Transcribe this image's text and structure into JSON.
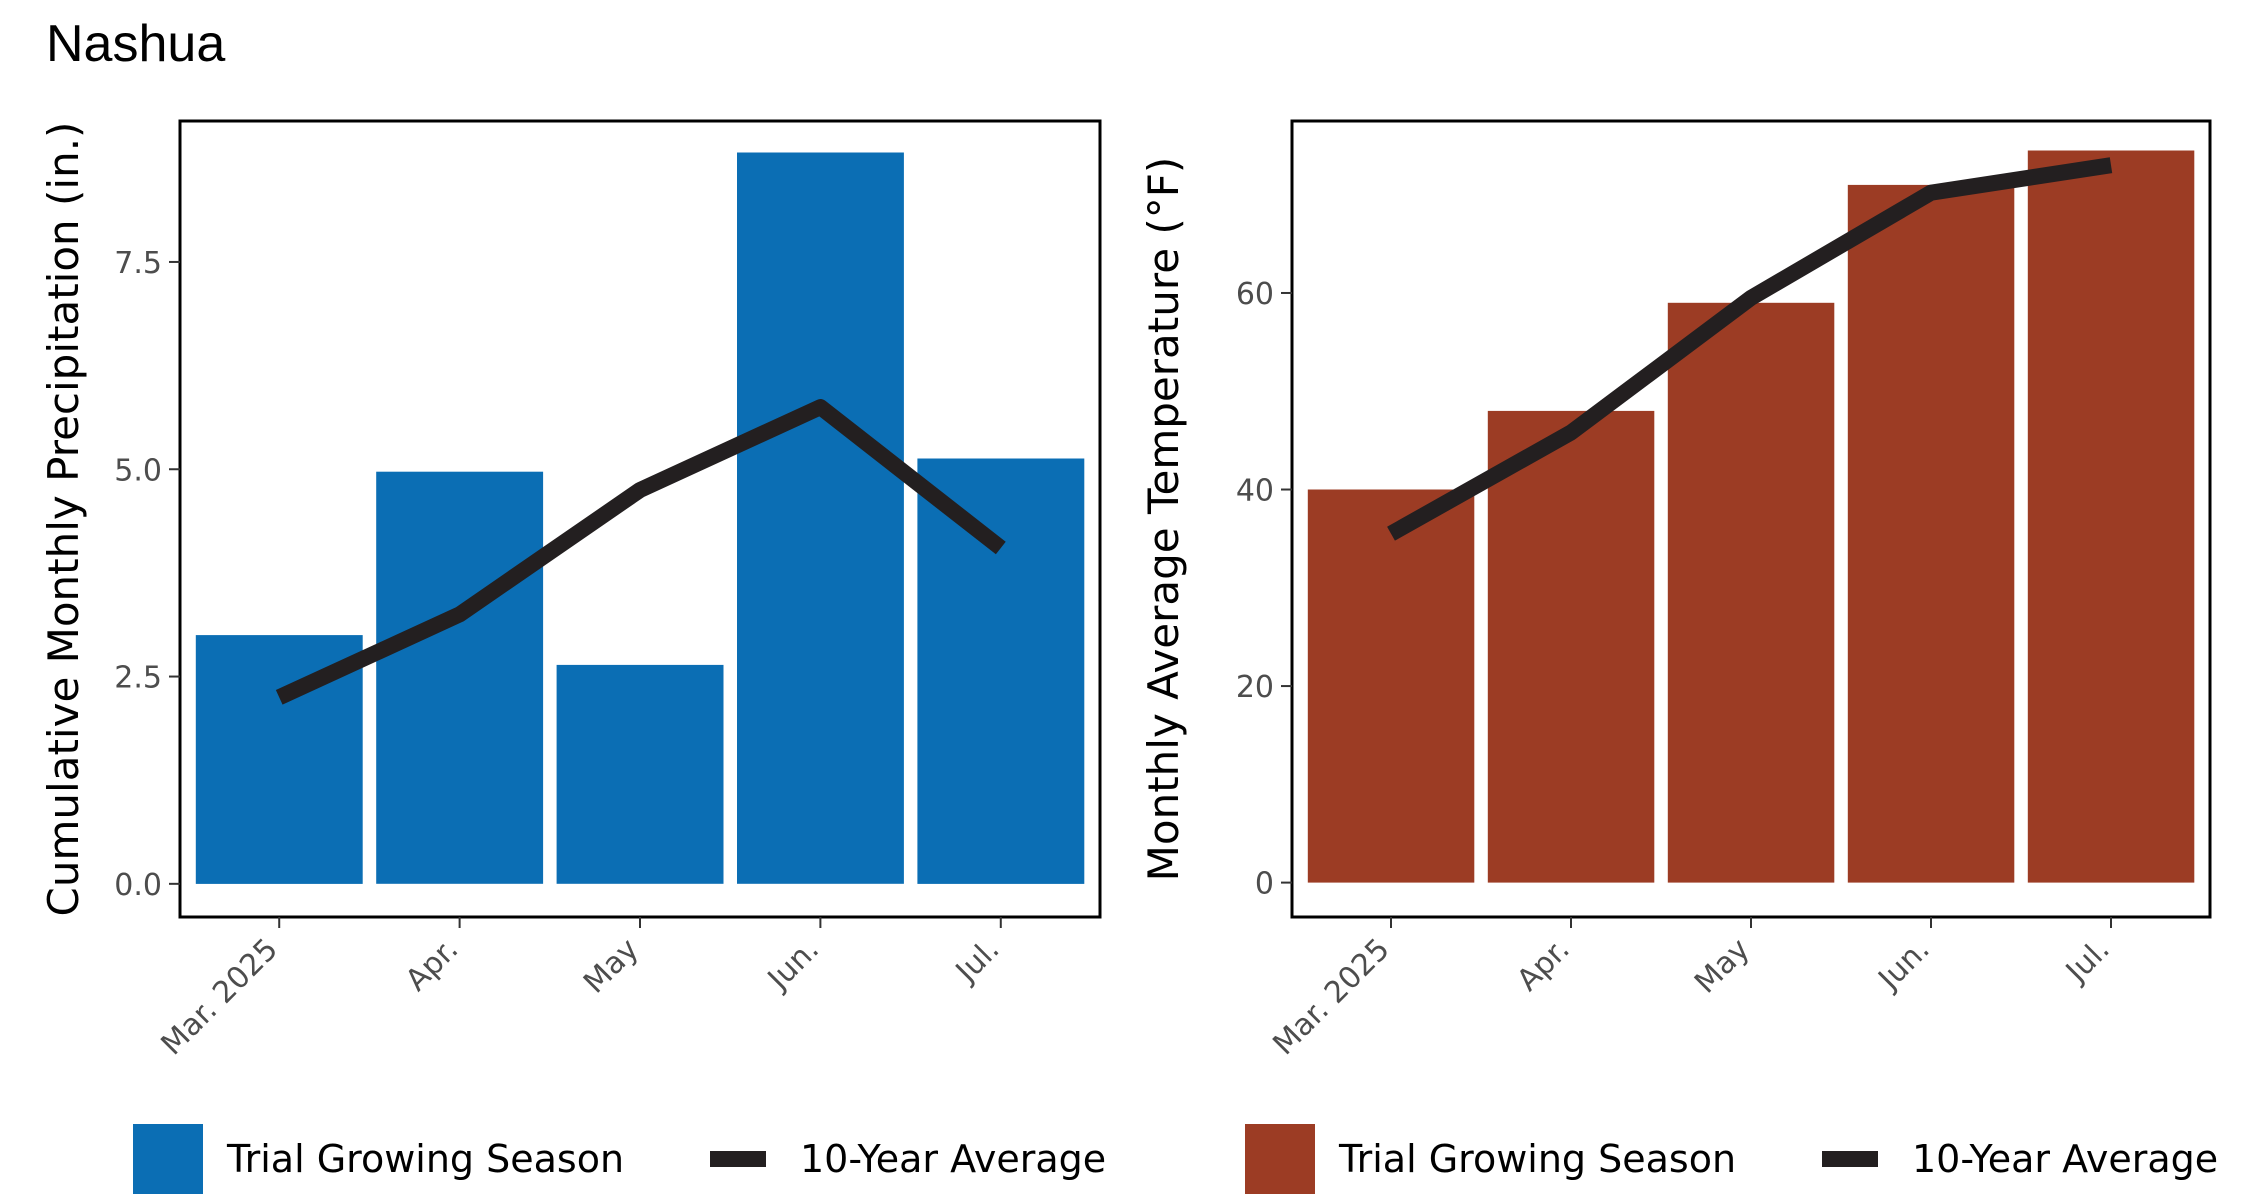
{
  "page_title": "Nashua",
  "chart_data": [
    {
      "type": "bar",
      "title": "Nashua",
      "ylabel": "Cumulative Monthly Precipitation (in.)",
      "xlabel": "",
      "categories": [
        "Mar. 2025",
        "Apr.",
        "May",
        "Jun.",
        "Jul."
      ],
      "ylim": [
        -0.4,
        9.2
      ],
      "yticks": [
        0.0,
        2.5,
        5.0,
        7.5
      ],
      "ytick_labels": [
        "0.0",
        "2.5",
        "5.0",
        "7.5"
      ],
      "grid": false,
      "bar_color": "#0b6eb4",
      "line_color": "#231f20",
      "series": [
        {
          "name": "Trial Growing Season",
          "kind": "bar",
          "values": [
            3.0,
            4.97,
            2.64,
            8.82,
            5.13
          ]
        },
        {
          "name": "10-Year Average",
          "kind": "line",
          "values": [
            2.25,
            3.25,
            4.75,
            5.75,
            4.05
          ]
        }
      ],
      "legend": {
        "position": "bottom",
        "labels": [
          "Trial Growing Season",
          "10-Year Average"
        ]
      }
    },
    {
      "type": "bar",
      "title": "",
      "ylabel": "Monthly Average Temperature  (°F)",
      "xlabel": "",
      "categories": [
        "Mar. 2025",
        "Apr.",
        "May",
        "Jun.",
        "Jul."
      ],
      "ylim": [
        -3.5,
        77.5
      ],
      "yticks": [
        0,
        20,
        40,
        60
      ],
      "ytick_labels": [
        "0",
        "20",
        "40",
        "60"
      ],
      "grid": false,
      "bar_color": "#9c3c24",
      "line_color": "#231f20",
      "series": [
        {
          "name": "Trial Growing Season",
          "kind": "bar",
          "values": [
            40,
            48,
            59,
            71,
            74.5
          ]
        },
        {
          "name": "10-Year Average",
          "kind": "line",
          "values": [
            35.5,
            45.8,
            59.5,
            70.2,
            73
          ]
        }
      ],
      "legend": {
        "position": "bottom",
        "labels": [
          "Trial Growing Season",
          "10-Year Average"
        ]
      }
    }
  ]
}
